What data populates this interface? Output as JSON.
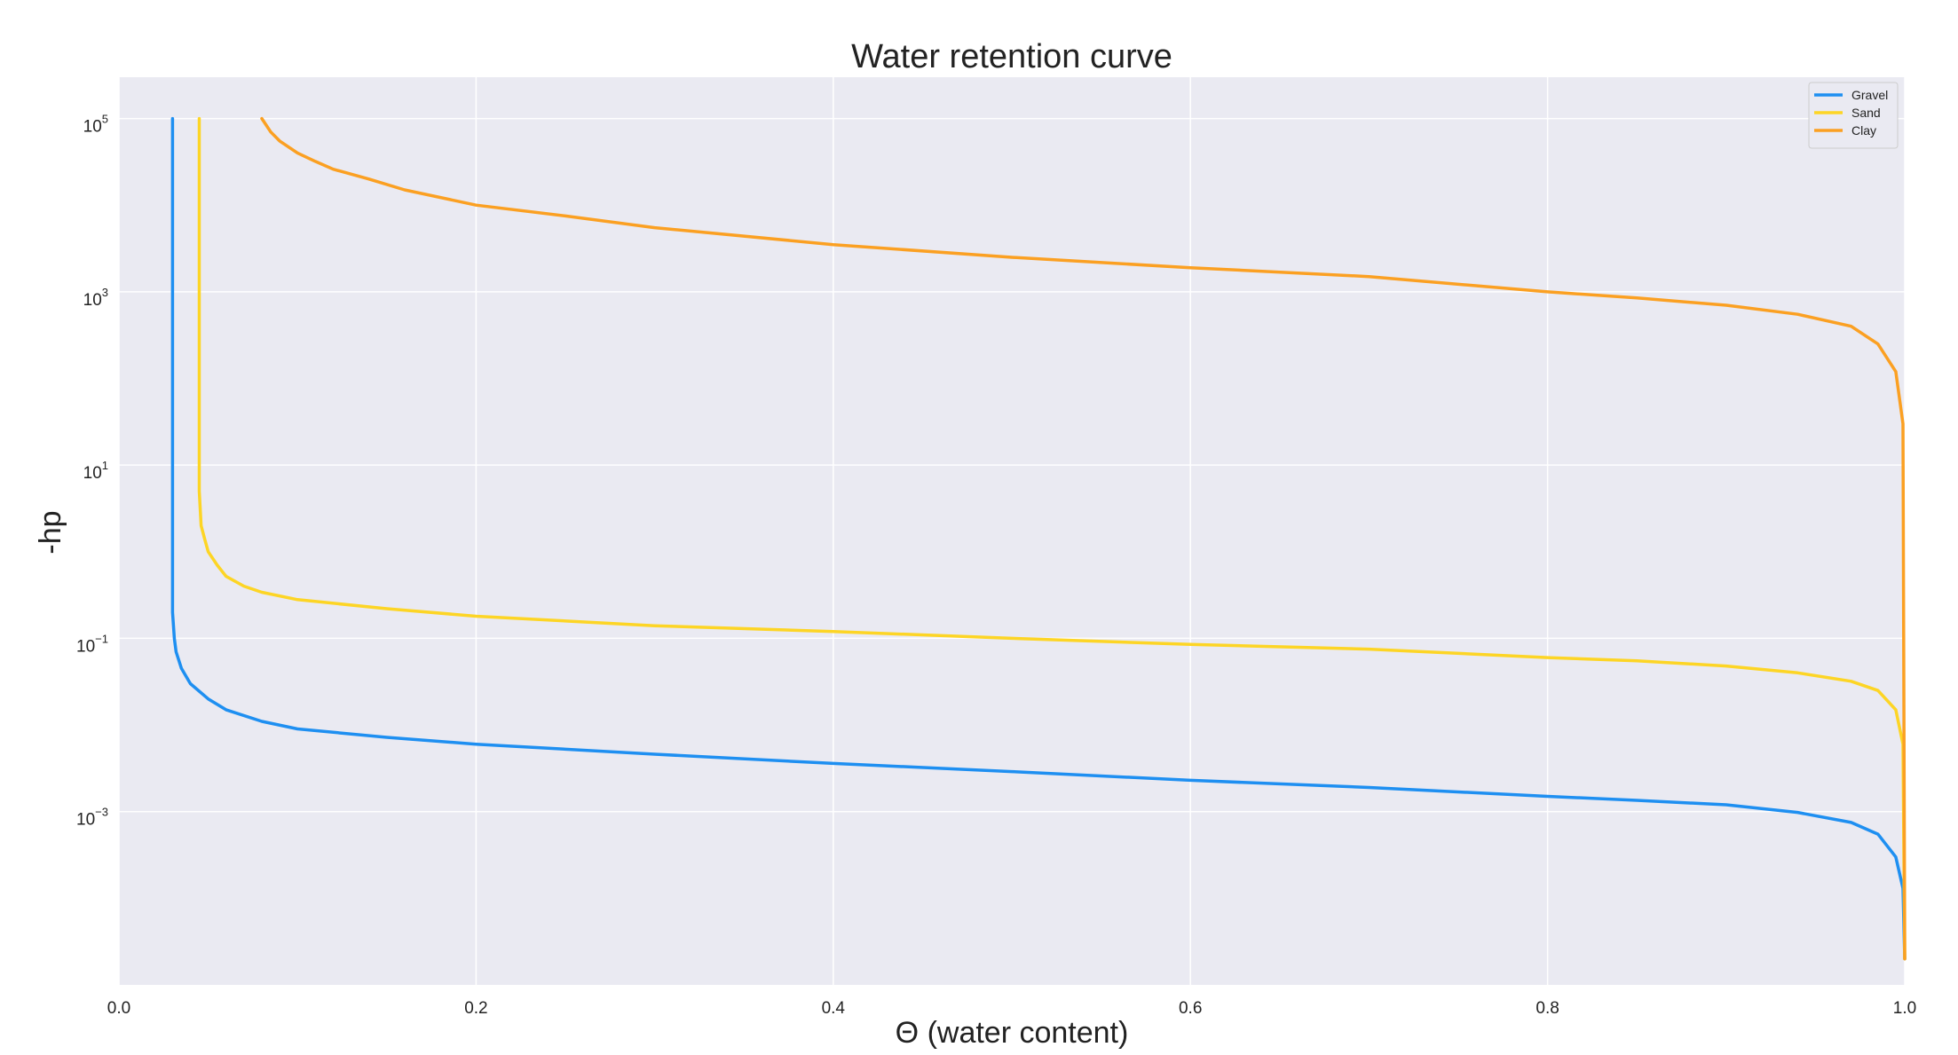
{
  "chart_data": {
    "type": "line",
    "title": "Water retention curve",
    "xlabel": "Θ (water content)",
    "ylabel": "-hp",
    "xlim": [
      0.0,
      1.0
    ],
    "ylim": [
      1e-05,
      300000
    ],
    "yscale": "log",
    "grid": true,
    "legend_position": "top-right",
    "background": "#eaeaf2",
    "x_ticks": [
      {
        "value": 0.0,
        "label": "0.0"
      },
      {
        "value": 0.2,
        "label": "0.2"
      },
      {
        "value": 0.4,
        "label": "0.4"
      },
      {
        "value": 0.6,
        "label": "0.6"
      },
      {
        "value": 0.8,
        "label": "0.8"
      },
      {
        "value": 1.0,
        "label": "1.0"
      }
    ],
    "y_ticks": [
      {
        "value": 100000,
        "base": "10",
        "exp": "5"
      },
      {
        "value": 1000,
        "base": "10",
        "exp": "3"
      },
      {
        "value": 10,
        "base": "10",
        "exp": "1"
      },
      {
        "value": 0.1,
        "base": "10",
        "exp": "−1"
      },
      {
        "value": 0.001,
        "base": "10",
        "exp": "−3"
      }
    ],
    "series": [
      {
        "name": "Gravel",
        "color": "#1e8ff1",
        "x": [
          0.03,
          0.03,
          0.03,
          0.031,
          0.032,
          0.035,
          0.04,
          0.05,
          0.06,
          0.08,
          0.1,
          0.15,
          0.2,
          0.3,
          0.4,
          0.5,
          0.6,
          0.7,
          0.8,
          0.85,
          0.9,
          0.94,
          0.97,
          0.985,
          0.995,
          0.999,
          1.0
        ],
        "y": [
          100000,
          1,
          0.2,
          0.1,
          0.07,
          0.045,
          0.03,
          0.02,
          0.015,
          0.011,
          0.009,
          0.0072,
          0.006,
          0.0046,
          0.0036,
          0.0029,
          0.0023,
          0.0019,
          0.0015,
          0.00135,
          0.0012,
          0.00098,
          0.00075,
          0.00055,
          0.0003,
          0.00013,
          2e-05
        ]
      },
      {
        "name": "Sand",
        "color": "#fdd525",
        "x": [
          0.045,
          0.045,
          0.045,
          0.046,
          0.048,
          0.05,
          0.055,
          0.06,
          0.07,
          0.08,
          0.1,
          0.15,
          0.2,
          0.3,
          0.4,
          0.5,
          0.6,
          0.7,
          0.8,
          0.85,
          0.9,
          0.94,
          0.97,
          0.985,
          0.995,
          0.999,
          1.0
        ],
        "y": [
          100000,
          20,
          5,
          2,
          1.4,
          1.0,
          0.7,
          0.52,
          0.4,
          0.34,
          0.28,
          0.22,
          0.18,
          0.14,
          0.12,
          0.1,
          0.085,
          0.075,
          0.06,
          0.055,
          0.048,
          0.04,
          0.032,
          0.025,
          0.015,
          0.006,
          2e-05
        ]
      },
      {
        "name": "Clay",
        "color": "#fba022",
        "x": [
          0.08,
          0.085,
          0.09,
          0.1,
          0.11,
          0.12,
          0.14,
          0.16,
          0.2,
          0.25,
          0.3,
          0.4,
          0.5,
          0.6,
          0.7,
          0.8,
          0.85,
          0.9,
          0.94,
          0.97,
          0.985,
          0.995,
          0.999,
          1.0
        ],
        "y": [
          100000,
          70000,
          55000,
          40000,
          32000,
          26000,
          20000,
          15000,
          10000,
          7500,
          5500,
          3500,
          2500,
          1900,
          1500,
          1000,
          850,
          700,
          550,
          400,
          250,
          120,
          30,
          2e-05
        ]
      }
    ]
  }
}
